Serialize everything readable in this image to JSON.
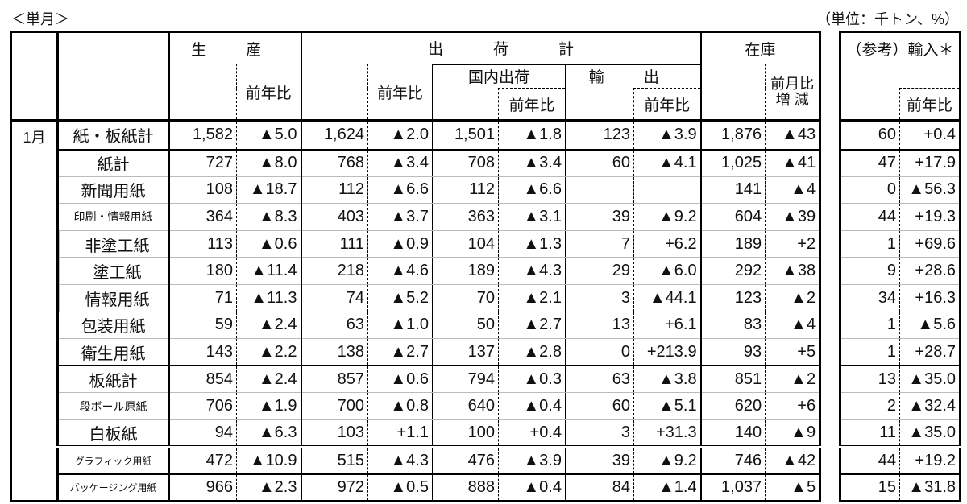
{
  "captions": {
    "left": "＜単月＞",
    "right": "（単位：千トン、%）"
  },
  "header": {
    "production": "生 産",
    "shipments": "出荷計",
    "inventory": "在庫",
    "domestic": "国内出荷",
    "export": "輸 出",
    "yoy": "前年比",
    "mom_line1": "前月比",
    "mom_line2": "増 減",
    "import": "（参考）輸入＊"
  },
  "month": "1月",
  "rows": [
    {
      "name": "紙・板紙計",
      "values": [
        "1,582",
        "▲5.0",
        "1,624",
        "▲2.0",
        "1,501",
        "▲1.8",
        "123",
        "▲3.9",
        "1,876",
        "▲43"
      ],
      "import": [
        "60",
        "+0.4"
      ]
    },
    {
      "name": "紙計",
      "values": [
        "727",
        "▲8.0",
        "768",
        "▲3.4",
        "708",
        "▲3.4",
        "60",
        "▲4.1",
        "1,025",
        "▲41"
      ],
      "import": [
        "47",
        "+17.9"
      ]
    },
    {
      "name": "新聞用紙",
      "values": [
        "108",
        "▲18.7",
        "112",
        "▲6.6",
        "112",
        "▲6.6",
        "",
        "",
        "141",
        "▲4"
      ],
      "import": [
        "0",
        "▲56.3"
      ]
    },
    {
      "name": "印刷・情報用紙",
      "values": [
        "364",
        "▲8.3",
        "403",
        "▲3.7",
        "363",
        "▲3.1",
        "39",
        "▲9.2",
        "604",
        "▲39"
      ],
      "import": [
        "44",
        "+19.3"
      ]
    },
    {
      "name": "非塗工紙",
      "values": [
        "113",
        "▲0.6",
        "111",
        "▲0.9",
        "104",
        "▲1.3",
        "7",
        "+6.2",
        "189",
        "+2"
      ],
      "import": [
        "1",
        "+69.6"
      ]
    },
    {
      "name": "塗工紙",
      "values": [
        "180",
        "▲11.4",
        "218",
        "▲4.6",
        "189",
        "▲4.3",
        "29",
        "▲6.0",
        "292",
        "▲38"
      ],
      "import": [
        "9",
        "+28.6"
      ]
    },
    {
      "name": "情報用紙",
      "values": [
        "71",
        "▲11.3",
        "74",
        "▲5.2",
        "70",
        "▲2.1",
        "3",
        "▲44.1",
        "123",
        "▲2"
      ],
      "import": [
        "34",
        "+16.3"
      ]
    },
    {
      "name": "包装用紙",
      "values": [
        "59",
        "▲2.4",
        "63",
        "▲1.0",
        "50",
        "▲2.7",
        "13",
        "+6.1",
        "83",
        "▲4"
      ],
      "import": [
        "1",
        "▲5.6"
      ]
    },
    {
      "name": "衛生用紙",
      "values": [
        "143",
        "▲2.2",
        "138",
        "▲2.7",
        "137",
        "▲2.8",
        "0",
        "+213.9",
        "93",
        "+5"
      ],
      "import": [
        "1",
        "+28.7"
      ]
    },
    {
      "name": "板紙計",
      "values": [
        "854",
        "▲2.4",
        "857",
        "▲0.6",
        "794",
        "▲0.3",
        "63",
        "▲3.8",
        "851",
        "▲2"
      ],
      "import": [
        "13",
        "▲35.0"
      ]
    },
    {
      "name": "段ボール原紙",
      "values": [
        "706",
        "▲1.9",
        "700",
        "▲0.8",
        "640",
        "▲0.4",
        "60",
        "▲5.1",
        "620",
        "+6"
      ],
      "import": [
        "2",
        "▲32.4"
      ]
    },
    {
      "name": "白板紙",
      "values": [
        "94",
        "▲6.3",
        "103",
        "+1.1",
        "100",
        "+0.4",
        "3",
        "+31.3",
        "140",
        "▲9"
      ],
      "import": [
        "11",
        "▲35.0"
      ]
    },
    {
      "name": "グラフィック用紙",
      "values": [
        "472",
        "▲10.9",
        "515",
        "▲4.3",
        "476",
        "▲3.9",
        "39",
        "▲9.2",
        "746",
        "▲42"
      ],
      "import": [
        "44",
        "+19.2"
      ]
    },
    {
      "name": "パッケージング用紙",
      "values": [
        "966",
        "▲2.3",
        "972",
        "▲0.5",
        "888",
        "▲0.4",
        "84",
        "▲1.4",
        "1,037",
        "▲5"
      ],
      "import": [
        "15",
        "▲31.8"
      ]
    }
  ]
}
